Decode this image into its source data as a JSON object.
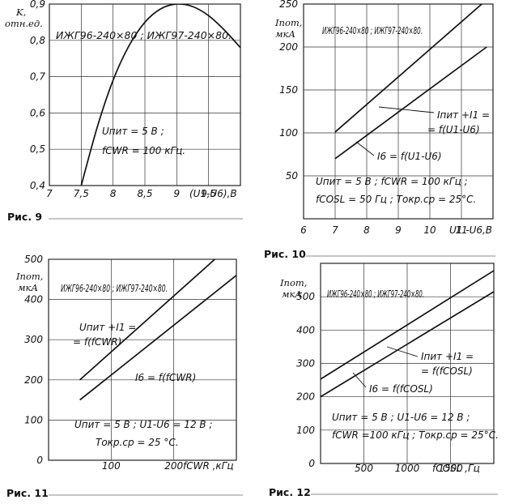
{
  "chart_data": [
    {
      "id": "fig9",
      "type": "line",
      "caption": "Рис. 9",
      "title": "ИЖГ96-240×80 ; ИЖГ97-240×80.",
      "ylabel": "K,",
      "yunit": "отн.ед.",
      "xlabel": "(U1-U6),В",
      "xlim": [
        7,
        10
      ],
      "ylim": [
        0.4,
        0.9
      ],
      "xticks": [
        "7",
        "7,5",
        "8",
        "8,5",
        "9",
        "9,5"
      ],
      "yticks": [
        "0,4",
        "0,5",
        "0,6",
        "0,7",
        "0,8",
        "0,9"
      ],
      "conditions": [
        "Uпит = 5 В ;",
        "fCWR = 100 кГц."
      ],
      "series": [
        {
          "x": [
            7.5,
            7.75,
            8.0,
            8.25,
            8.5,
            8.75,
            9.0,
            9.25,
            9.5,
            9.75,
            10.0
          ],
          "y": [
            0.4,
            0.56,
            0.69,
            0.785,
            0.85,
            0.887,
            0.9,
            0.893,
            0.868,
            0.828,
            0.78
          ]
        }
      ]
    },
    {
      "id": "fig10",
      "type": "line",
      "caption": "Рис. 10",
      "title": "ИЖГ96-240×80 ; ИЖГ97-240×80.",
      "ylabel": "Iпот,",
      "yunit": "мкА",
      "xlabel": "U1 -U6,В",
      "xlim": [
        6,
        12
      ],
      "ylim": [
        0,
        250
      ],
      "xticks": [
        "6",
        "7",
        "8",
        "9",
        "10",
        "11"
      ],
      "yticks": [
        "50",
        "100",
        "150",
        "200",
        "250"
      ],
      "conditions": [
        "Uпит = 5 В ; fCWR = 100 кГц ;",
        "fCOSL = 50 Гц ; Tокр.ср = 25°C."
      ],
      "series": [
        {
          "name": "Iпит+I1 = =f(U1-U6)",
          "x": [
            7,
            11.8
          ],
          "y": [
            101,
            255
          ]
        },
        {
          "name": "I6 = f(U1-U6)",
          "x": [
            7,
            11.8
          ],
          "y": [
            70,
            200
          ]
        }
      ]
    },
    {
      "id": "fig11",
      "type": "line",
      "caption": "Рис. 11",
      "title": "ИЖГ96-240×80 ; ИЖГ97-240×80.",
      "ylabel": "Iпот,",
      "yunit": "мкА",
      "xlabel": "fCWR ,кГц",
      "xlim": [
        0,
        300
      ],
      "ylim": [
        0,
        500
      ],
      "xticks": [
        "100",
        "200"
      ],
      "yticks": [
        "0",
        "100",
        "200",
        "300",
        "400",
        "500"
      ],
      "conditions": [
        "Uпит = 5 В ; U1-U6 = 12 В ;",
        "Tокр.ср = 25 °C."
      ],
      "series": [
        {
          "name": "Uпит+I1 = =f(fCWR)",
          "x": [
            50,
            300
          ],
          "y": [
            200,
            548
          ]
        },
        {
          "name": "I6 = f(fCWR)",
          "x": [
            50,
            300
          ],
          "y": [
            150,
            460
          ]
        }
      ]
    },
    {
      "id": "fig12",
      "type": "line",
      "caption": "Рис. 12",
      "title": "ИЖГ96-240×80 ; ИЖГ97-240×80.",
      "ylabel": "Iпот,",
      "yunit": "мкА",
      "xlabel": "fCOSL ,Гц",
      "xlim": [
        0,
        2000
      ],
      "ylim": [
        0,
        600
      ],
      "xticks": [
        "500",
        "1000",
        "1500"
      ],
      "yticks": [
        "0",
        "100",
        "200",
        "300",
        "400",
        "500"
      ],
      "conditions": [
        "Uпит = 5 В ; U1-U6 = 12 В ;",
        "fCWR =100 кГц ; Tокр.ср = 25°C."
      ],
      "series": [
        {
          "name": "Iпит+I1 = =f(fCOSL)",
          "x": [
            0,
            2000
          ],
          "y": [
            253,
            578
          ]
        },
        {
          "name": "I6 = f(fCOSL)",
          "x": [
            0,
            2000
          ],
          "y": [
            200,
            515
          ]
        }
      ]
    }
  ]
}
